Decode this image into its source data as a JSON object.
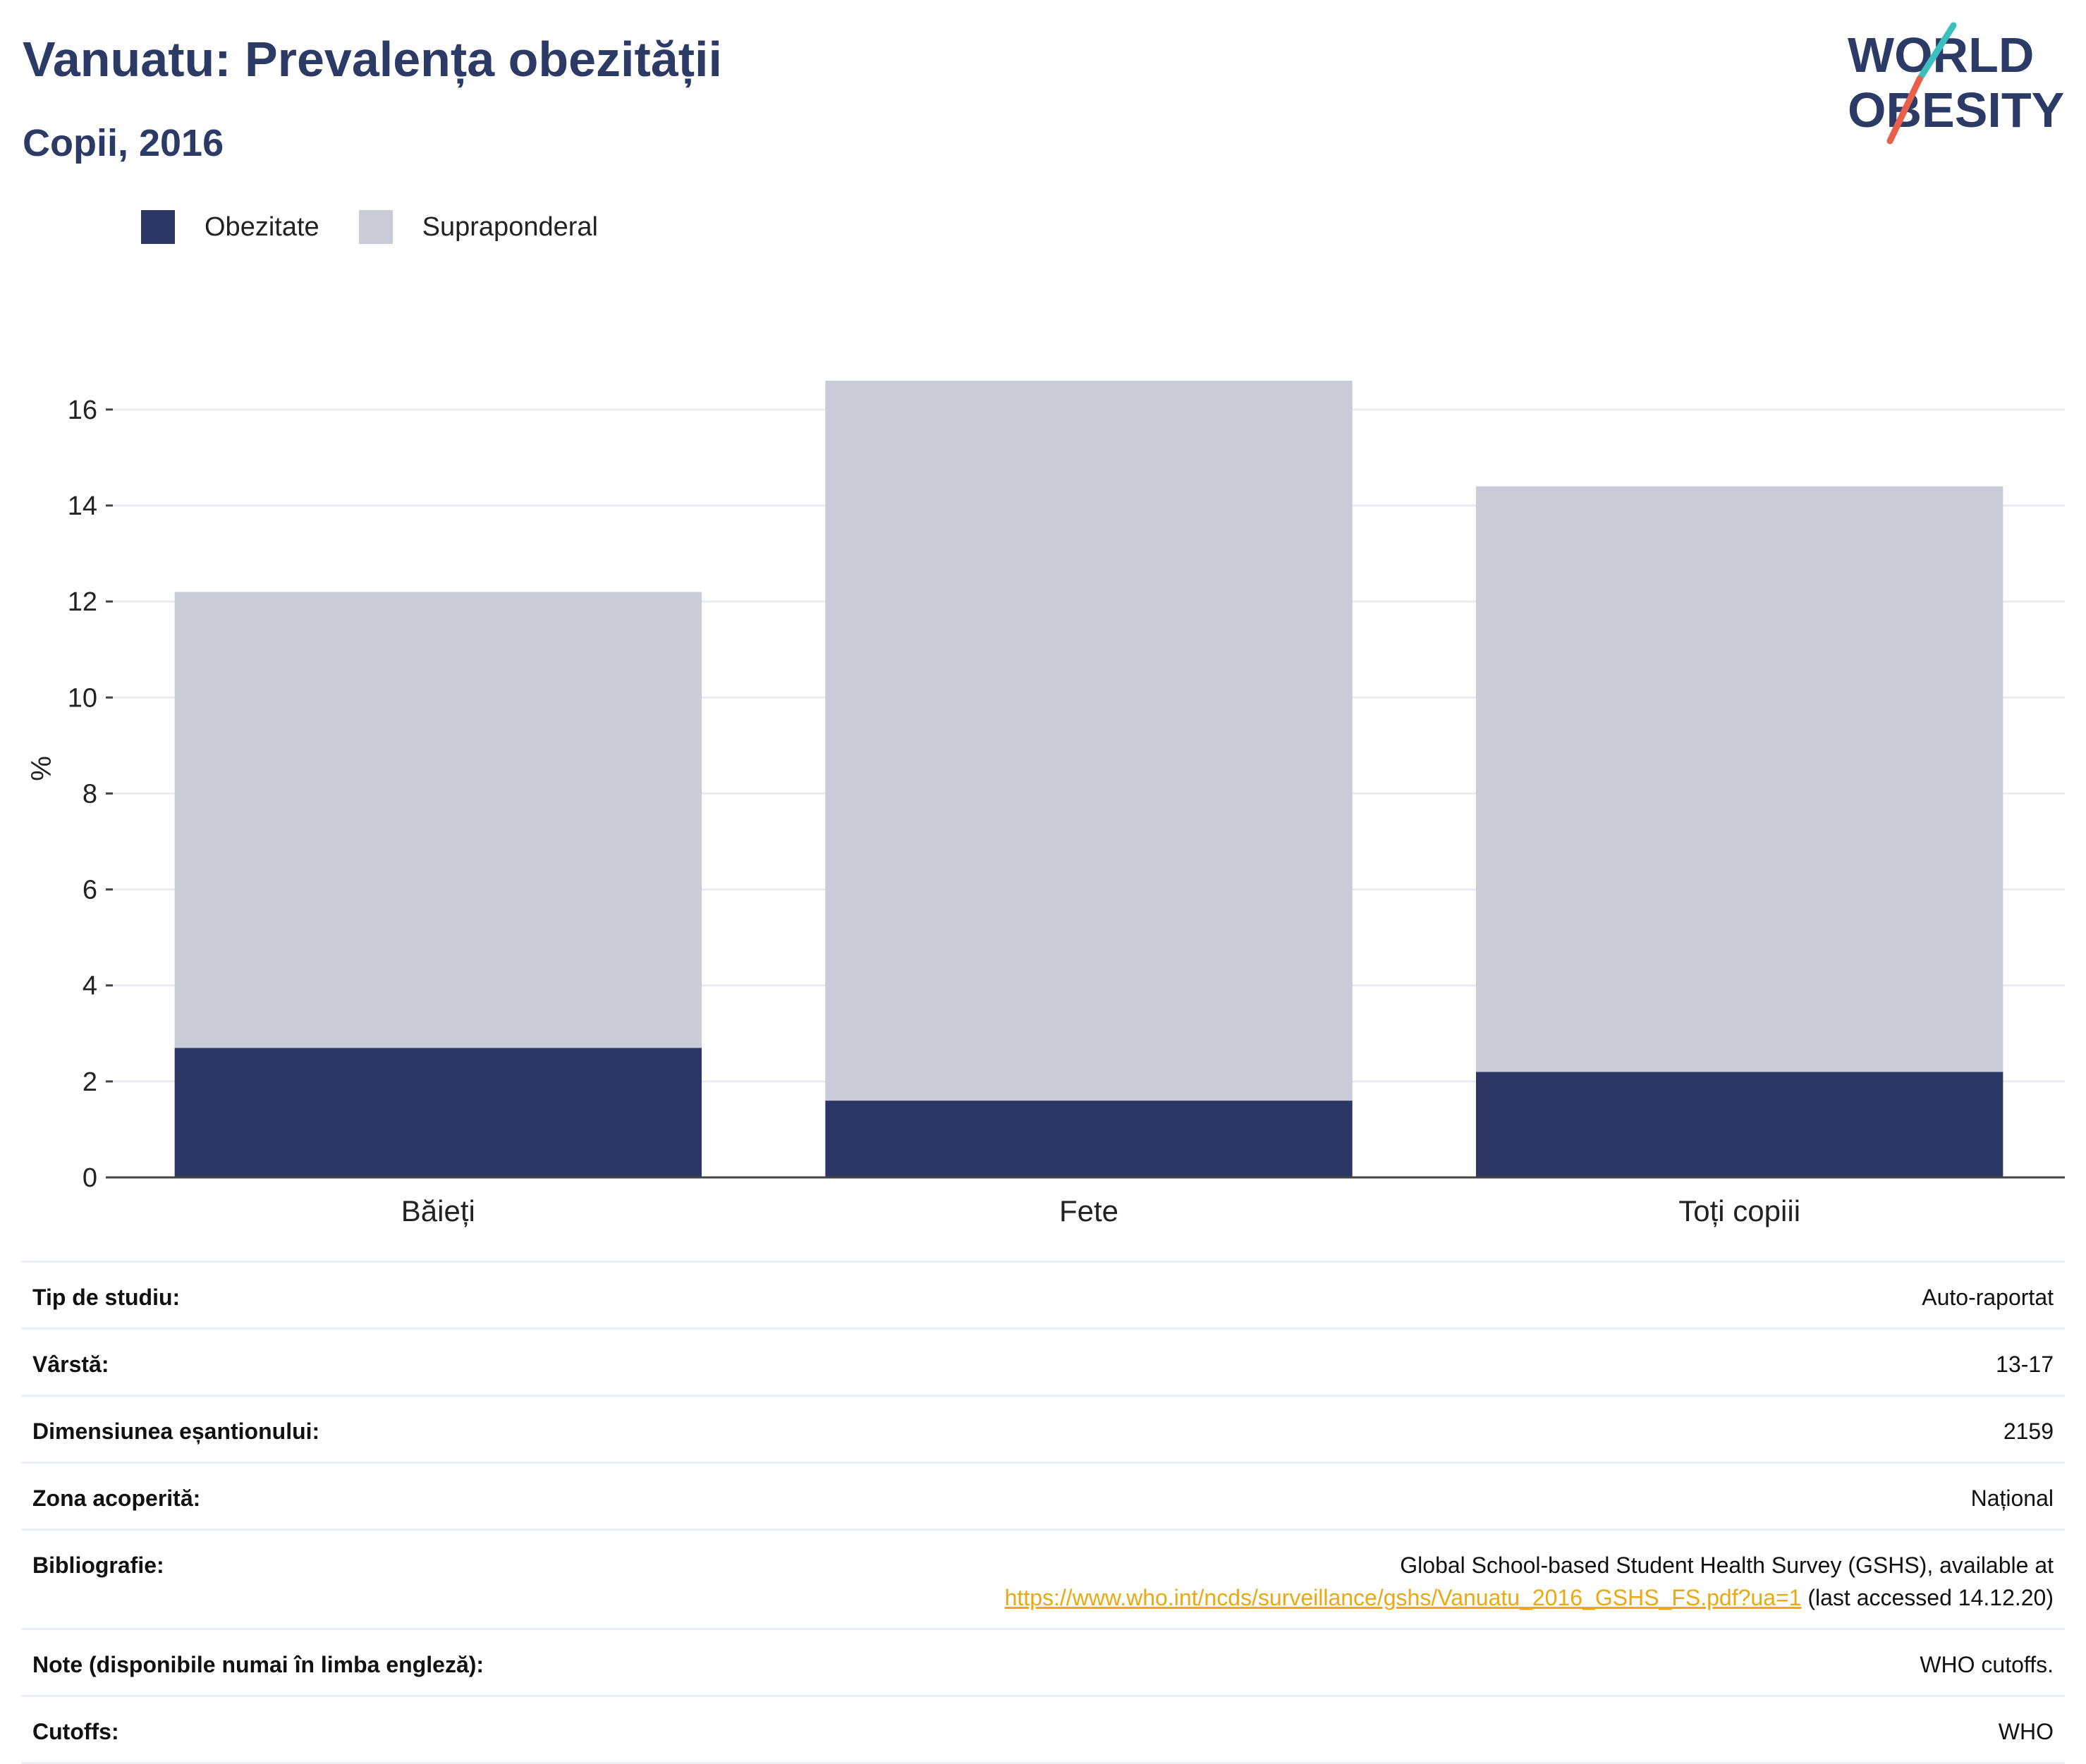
{
  "header": {
    "title": "Vanuatu: Prevalența obezității",
    "subtitle": "Copii, 2016"
  },
  "logo": {
    "line1": "WORLD",
    "line2": "OBESITY",
    "colors": {
      "text": "#2c3a66",
      "slash_top": "#3bbfbf",
      "slash_bottom": "#e8604c"
    }
  },
  "legend": {
    "items": [
      {
        "label": "Obezitate",
        "color": "#2c3766"
      },
      {
        "label": "Supraponderal",
        "color": "#c9cbd7"
      }
    ]
  },
  "chart_data": {
    "type": "bar",
    "stacked": true,
    "categories": [
      "Băieți",
      "Fete",
      "Toți copiii"
    ],
    "series": [
      {
        "name": "Obezitate",
        "values": [
          2.7,
          1.6,
          2.2
        ],
        "color": "#2c3766"
      },
      {
        "name": "Supraponderal",
        "values": [
          9.5,
          15.0,
          12.2
        ],
        "color": "#c9cbd7"
      }
    ],
    "ylabel": "%",
    "ylim": [
      0,
      16.6
    ],
    "yticks": [
      0,
      2,
      4,
      6,
      8,
      10,
      12,
      14,
      16
    ],
    "grid": true,
    "legend_position": "top-left"
  },
  "info": {
    "rows": [
      {
        "label": "Tip de studiu:",
        "value": "Auto-raportat"
      },
      {
        "label": "Vârstă:",
        "value": "13-17"
      },
      {
        "label": "Dimensiunea eșantionului:",
        "value": "2159"
      },
      {
        "label": "Zona acoperită:",
        "value": "Național"
      },
      {
        "label": "Bibliografie:",
        "value": "Global School-based Student Health Survey (GSHS), available at",
        "link": "https://www.who.int/ncds/surveillance/gshs/Vanuatu_2016_GSHS_FS.pdf?ua=1",
        "suffix": " (last accessed 14.12.20)"
      },
      {
        "label": "Note (disponibile numai în limba engleză):",
        "value": "WHO cutoffs."
      },
      {
        "label": "Cutoffs:",
        "value": "WHO"
      }
    ]
  }
}
